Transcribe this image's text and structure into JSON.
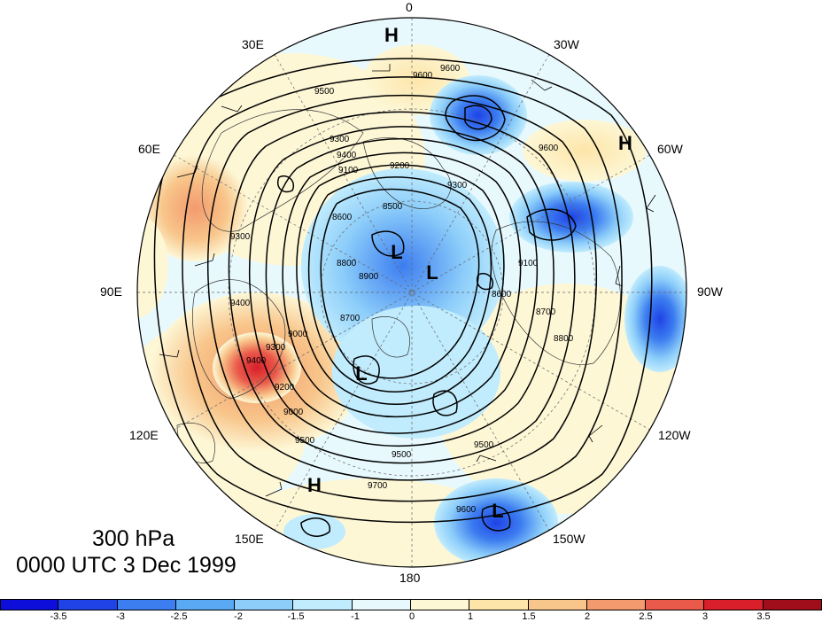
{
  "title": {
    "level": "300 hPa",
    "time": "0000 UTC 3 Dec 1999"
  },
  "longitude_labels": [
    "0",
    "30W",
    "60W",
    "90W",
    "120W",
    "150W",
    "180",
    "150E",
    "120E",
    "90E",
    "60E",
    "30E"
  ],
  "pressure_centers": [
    "H",
    "H",
    "H",
    "L",
    "L",
    "L",
    "L"
  ],
  "contour_labels": [
    "9600",
    "9600",
    "9500",
    "9400",
    "9300",
    "9300",
    "9200",
    "9100",
    "9000",
    "8900",
    "8800",
    "8700",
    "8600",
    "8500",
    "8600",
    "8700",
    "8800",
    "9100",
    "9300",
    "9400",
    "9500",
    "9500",
    "9600",
    "9700",
    "9600",
    "9500",
    "9400",
    "9300",
    "9200",
    "9000"
  ],
  "colorbar": {
    "ticks": [
      "-3.5",
      "-3",
      "-2.5",
      "-2",
      "-1.5",
      "-1",
      "0",
      "1",
      "1.5",
      "2",
      "2.5",
      "3",
      "3.5"
    ],
    "colors": [
      "#0d0ed9",
      "#1f43e6",
      "#3c7df0",
      "#5aa9f5",
      "#8ccdfa",
      "#c1ecfd",
      "#e8f9fe",
      "#fdf7d6",
      "#fde5a9",
      "#f8c58a",
      "#f39a6e",
      "#ea5a4a",
      "#d81f2a",
      "#a00e1c"
    ]
  }
}
